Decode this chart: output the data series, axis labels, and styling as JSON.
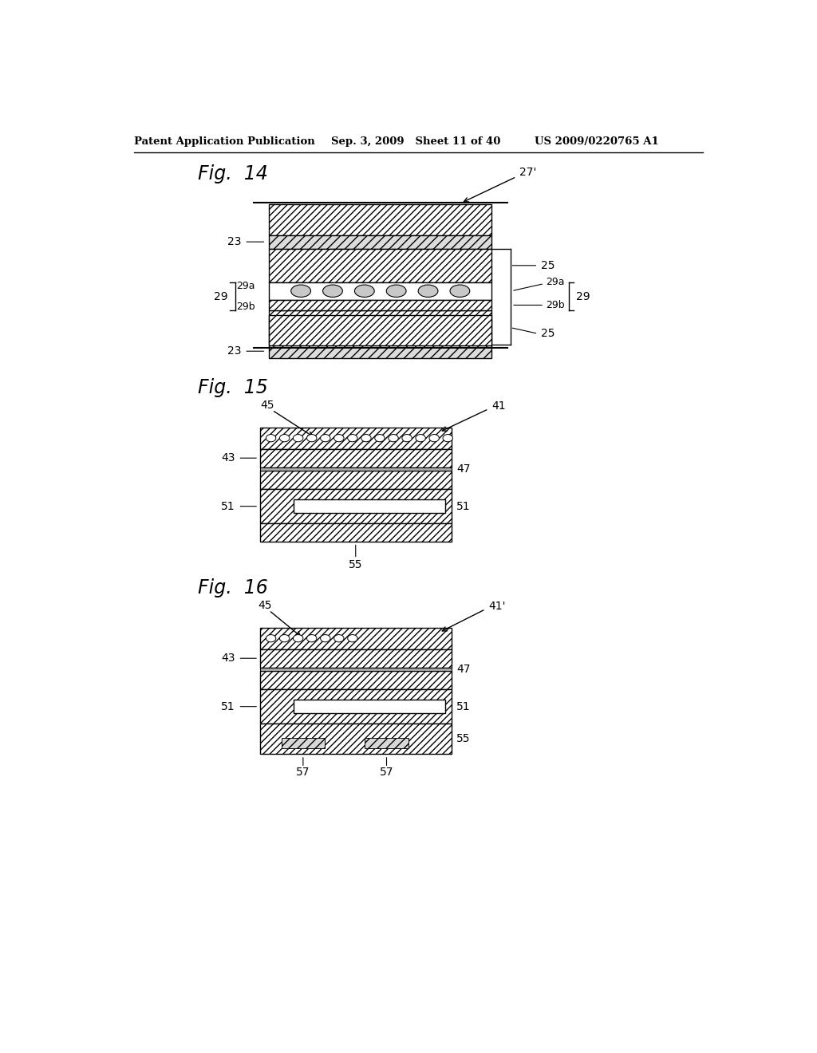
{
  "header_left": "Patent Application Publication",
  "header_mid": "Sep. 3, 2009   Sheet 11 of 40",
  "header_right": "US 2009/0220765 A1",
  "fig14_label": "Fig.  14",
  "fig15_label": "Fig.  15",
  "fig16_label": "Fig.  16",
  "bg_color": "#ffffff"
}
